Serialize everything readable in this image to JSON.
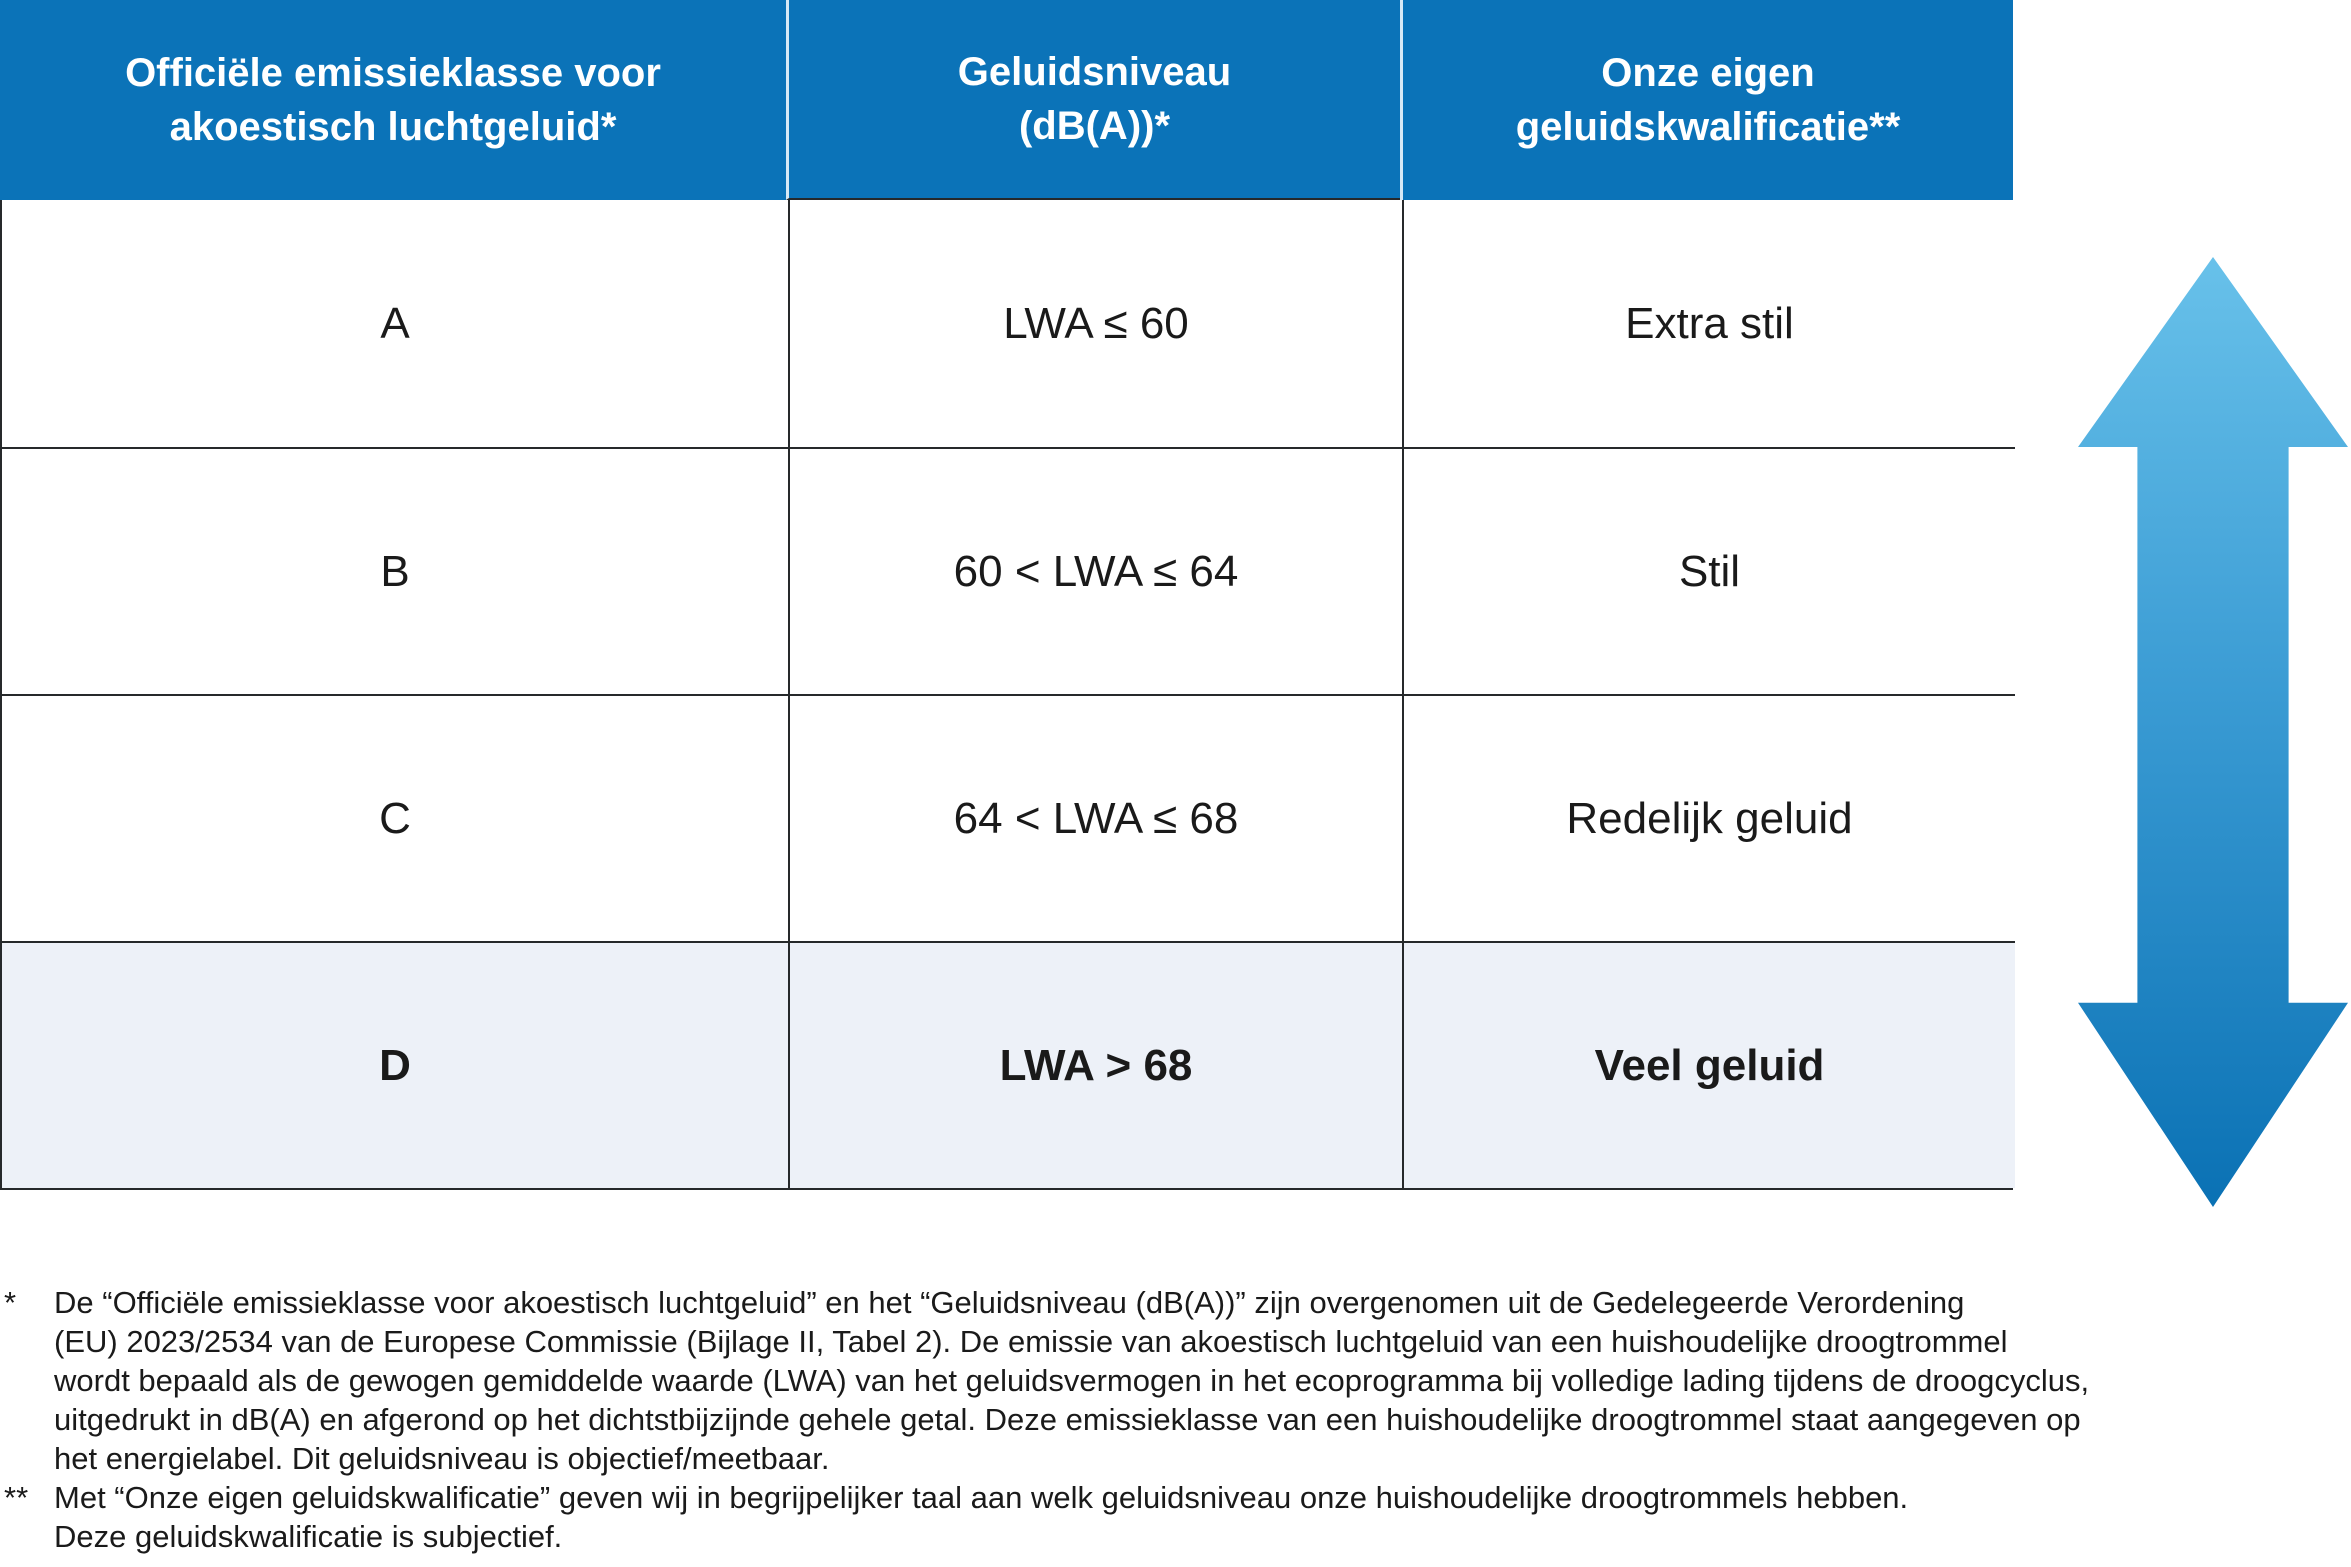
{
  "chart_data": {
    "type": "table",
    "columns": [
      "Officiële emissieklasse voor akoestisch luchtgeluid*",
      "Geluidsniveau (dB(A))*",
      "Onze eigen geluidskwalificatie**"
    ],
    "rows": [
      [
        "A",
        "LWA ≤ 60",
        "Extra stil"
      ],
      [
        "B",
        "60 < LWA ≤ 64",
        "Stil"
      ],
      [
        "C",
        "64 < LWA ≤ 68",
        "Redelijk geluid"
      ],
      [
        "D",
        "LWA > 68",
        "Veel geluid"
      ]
    ],
    "highlighted_row": "D",
    "legend_position": "none",
    "annotations": "vertical up-down gradient arrow right of table (light blue top, dark blue bottom)"
  },
  "table": {
    "headers": [
      {
        "line1": "Officiële emissieklasse voor",
        "line2": "akoestisch luchtgeluid*"
      },
      {
        "line1": "Geluidsniveau",
        "line2": "(dB(A))*"
      },
      {
        "line1": "Onze eigen",
        "line2": "geluidskwalificatie**"
      }
    ],
    "rows": [
      {
        "klasse": "A",
        "niveau": "LWA ≤ 60",
        "kwalificatie": "Extra stil"
      },
      {
        "klasse": "B",
        "niveau": "60 < LWA ≤ 64",
        "kwalificatie": "Stil"
      },
      {
        "klasse": "C",
        "niveau": "64 < LWA ≤ 68",
        "kwalificatie": "Redelijk geluid"
      },
      {
        "klasse": "D",
        "niveau": "LWA > 68",
        "kwalificatie": "Veel geluid"
      }
    ]
  },
  "footnotes": [
    {
      "marker": "*",
      "lines": [
        "De “Officiële emissieklasse voor akoestisch luchtgeluid” en het “Geluidsniveau (dB(A))” zijn overgenomen uit de Gedelegeerde Verordening",
        "(EU) 2023/2534 van de Europese Commissie (Bijlage II, Tabel 2). De emissie van akoestisch luchtgeluid van een huishoudelijke droogtrommel",
        "wordt bepaald als de gewogen gemiddelde waarde (LWA) van het geluidsvermogen in het ecoprogramma bij volledige lading tijdens de droogcyclus,",
        "uitgedrukt in dB(A) en afgerond op het dichtstbijzijnde gehele getal. Deze emissieklasse van een huishoudelijke droogtrommel staat aangegeven op",
        "het energielabel. Dit geluidsniveau is objectief/meetbaar."
      ]
    },
    {
      "marker": "**",
      "lines": [
        "Met “Onze eigen geluidskwalificatie” geven wij in begrijpelijker taal aan welk geluidsniveau onze huishoudelijke droogtrommels hebben.",
        "Deze geluidskwalificatie is subjectief."
      ]
    }
  ],
  "colors": {
    "header_bg": "#0b73b8",
    "header_text": "#ffffff",
    "highlight_row_bg": "#edf1f8",
    "table_border": "#26292b",
    "arrow_gradient_top": "#68c1ea",
    "arrow_gradient_bottom": "#0a71b4"
  }
}
